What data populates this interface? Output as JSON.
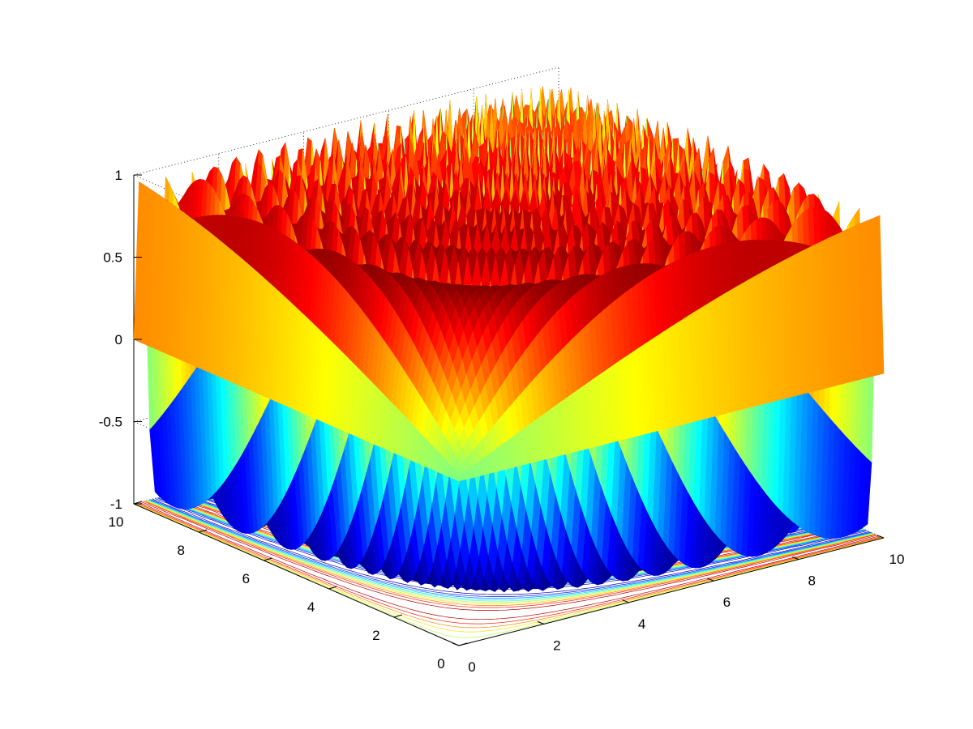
{
  "chart_data": {
    "type": "surface3d",
    "title": "",
    "xlabel": "",
    "ylabel": "",
    "zlabel": "",
    "function": "sin(x*y)",
    "x_range": [
      0,
      10
    ],
    "y_range": [
      0,
      10
    ],
    "z_range": [
      -1,
      1
    ],
    "grid_resolution": 80,
    "colormap": "jet",
    "contour_on_floor": true,
    "grid": "on",
    "view": {
      "azimuth": -45,
      "elevation": 30
    },
    "ticks": {
      "x": [
        "0",
        "2",
        "4",
        "6",
        "8",
        "10"
      ],
      "y": [
        "0",
        "2",
        "4",
        "6",
        "8",
        "10"
      ],
      "z": [
        "-1",
        "-0.5",
        "0",
        "0.5",
        "1"
      ]
    },
    "tick_values": {
      "x": [
        0,
        2,
        4,
        6,
        8,
        10
      ],
      "y": [
        0,
        2,
        4,
        6,
        8,
        10
      ],
      "z": [
        -1,
        -0.5,
        0,
        0.5,
        1
      ]
    }
  }
}
